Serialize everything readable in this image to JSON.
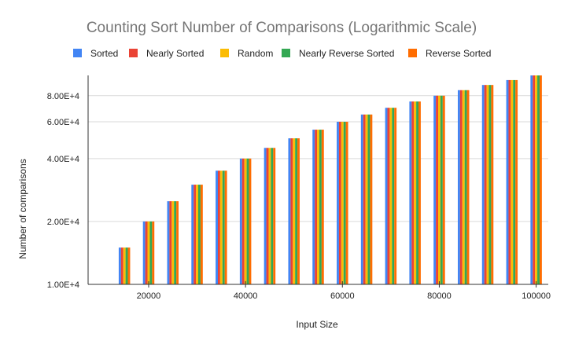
{
  "chart_data": {
    "type": "bar",
    "title": "Counting Sort Number of Comparisons (Logarithmic Scale)",
    "xlabel": "Input Size",
    "ylabel": "Number of comparisons",
    "y_scale": "log",
    "ylim": [
      10000,
      100000
    ],
    "xlim": [
      7500,
      102500
    ],
    "grid": "horizontal",
    "legend_position": "top",
    "x_tick_labels": [
      "20000",
      "40000",
      "60000",
      "80000",
      "100000"
    ],
    "x_ticks": [
      20000,
      40000,
      60000,
      80000,
      100000
    ],
    "y_tick_labels": [
      "1.00E+4",
      "2.00E+4",
      "4.00E+4",
      "6.00E+4",
      "8.00E+4"
    ],
    "y_ticks": [
      10000,
      20000,
      40000,
      60000,
      80000
    ],
    "x": [
      15000,
      20000,
      25000,
      30000,
      35000,
      40000,
      45000,
      50000,
      55000,
      60000,
      65000,
      70000,
      75000,
      80000,
      85000,
      90000,
      95000,
      100000
    ],
    "series": [
      {
        "name": "Sorted",
        "color": "#4285F4",
        "values": [
          15000,
          20000,
          25000,
          30000,
          35000,
          40000,
          45000,
          50000,
          55000,
          60000,
          65000,
          70000,
          75000,
          80000,
          85000,
          90000,
          95000,
          100000
        ]
      },
      {
        "name": "Nearly Sorted",
        "color": "#EA4335",
        "values": [
          15000,
          20000,
          25000,
          30000,
          35000,
          40000,
          45000,
          50000,
          55000,
          60000,
          65000,
          70000,
          75000,
          80000,
          85000,
          90000,
          95000,
          100000
        ]
      },
      {
        "name": "Random",
        "color": "#FBBC04",
        "values": [
          15000,
          20000,
          25000,
          30000,
          35000,
          40000,
          45000,
          50000,
          55000,
          60000,
          65000,
          70000,
          75000,
          80000,
          85000,
          90000,
          95000,
          100000
        ]
      },
      {
        "name": "Nearly Reverse Sorted",
        "color": "#34A853",
        "values": [
          15000,
          20000,
          25000,
          30000,
          35000,
          40000,
          45000,
          50000,
          55000,
          60000,
          65000,
          70000,
          75000,
          80000,
          85000,
          90000,
          95000,
          100000
        ]
      },
      {
        "name": "Reverse Sorted",
        "color": "#FF6D01",
        "values": [
          15000,
          20000,
          25000,
          30000,
          35000,
          40000,
          45000,
          50000,
          55000,
          60000,
          65000,
          70000,
          75000,
          80000,
          85000,
          90000,
          95000,
          100000
        ]
      }
    ]
  }
}
